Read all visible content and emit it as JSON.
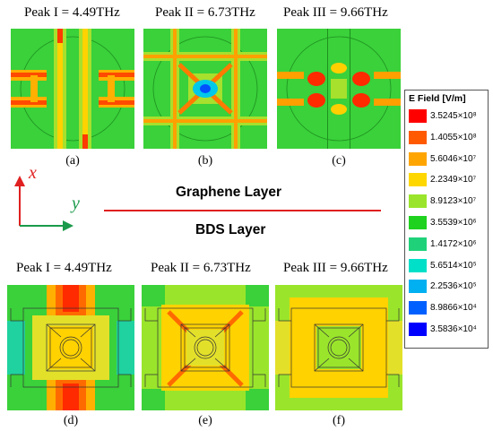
{
  "top_row": {
    "peaks": [
      {
        "label": "Peak I = 4.49THz"
      },
      {
        "label": "Peak II = 6.73THz"
      },
      {
        "label": "Peak III = 9.66THz"
      }
    ],
    "subfigs": [
      "(a)",
      "(b)",
      "(c)"
    ]
  },
  "bottom_row": {
    "peaks": [
      {
        "label": "Peak I = 4.49THz"
      },
      {
        "label": "Peak II = 6.73THz"
      },
      {
        "label": "Peak III = 9.66THz"
      }
    ],
    "subfigs": [
      "(d)",
      "(e)",
      "(f)"
    ]
  },
  "middle": {
    "graphene_label": "Graphene Layer",
    "bds_label": "BDS Layer",
    "axis_x": "x",
    "axis_y": "y",
    "axis_x_color": "#e02020",
    "axis_y_color": "#1a9a4a",
    "divider_color": "#e02020"
  },
  "legend": {
    "title": "E Field [V/m]",
    "items": [
      {
        "value": "3.5245×10⁸",
        "color": "#ff0000"
      },
      {
        "value": "1.4055×10⁸",
        "color": "#ff5a00"
      },
      {
        "value": "5.6046×10⁷",
        "color": "#ffa500"
      },
      {
        "value": "2.2349×10⁷",
        "color": "#ffd700"
      },
      {
        "value": "8.9123×10⁷",
        "color": "#9ae52b"
      },
      {
        "value": "3.5539×10⁶",
        "color": "#1fd21f"
      },
      {
        "value": "1.4172×10⁶",
        "color": "#1fd27a"
      },
      {
        "value": "5.6514×10⁵",
        "color": "#00e0c8"
      },
      {
        "value": "2.2536×10⁵",
        "color": "#00b0f0"
      },
      {
        "value": "8.9866×10⁴",
        "color": "#0060ff"
      },
      {
        "value": "3.5836×10⁴",
        "color": "#0000ff"
      }
    ]
  }
}
